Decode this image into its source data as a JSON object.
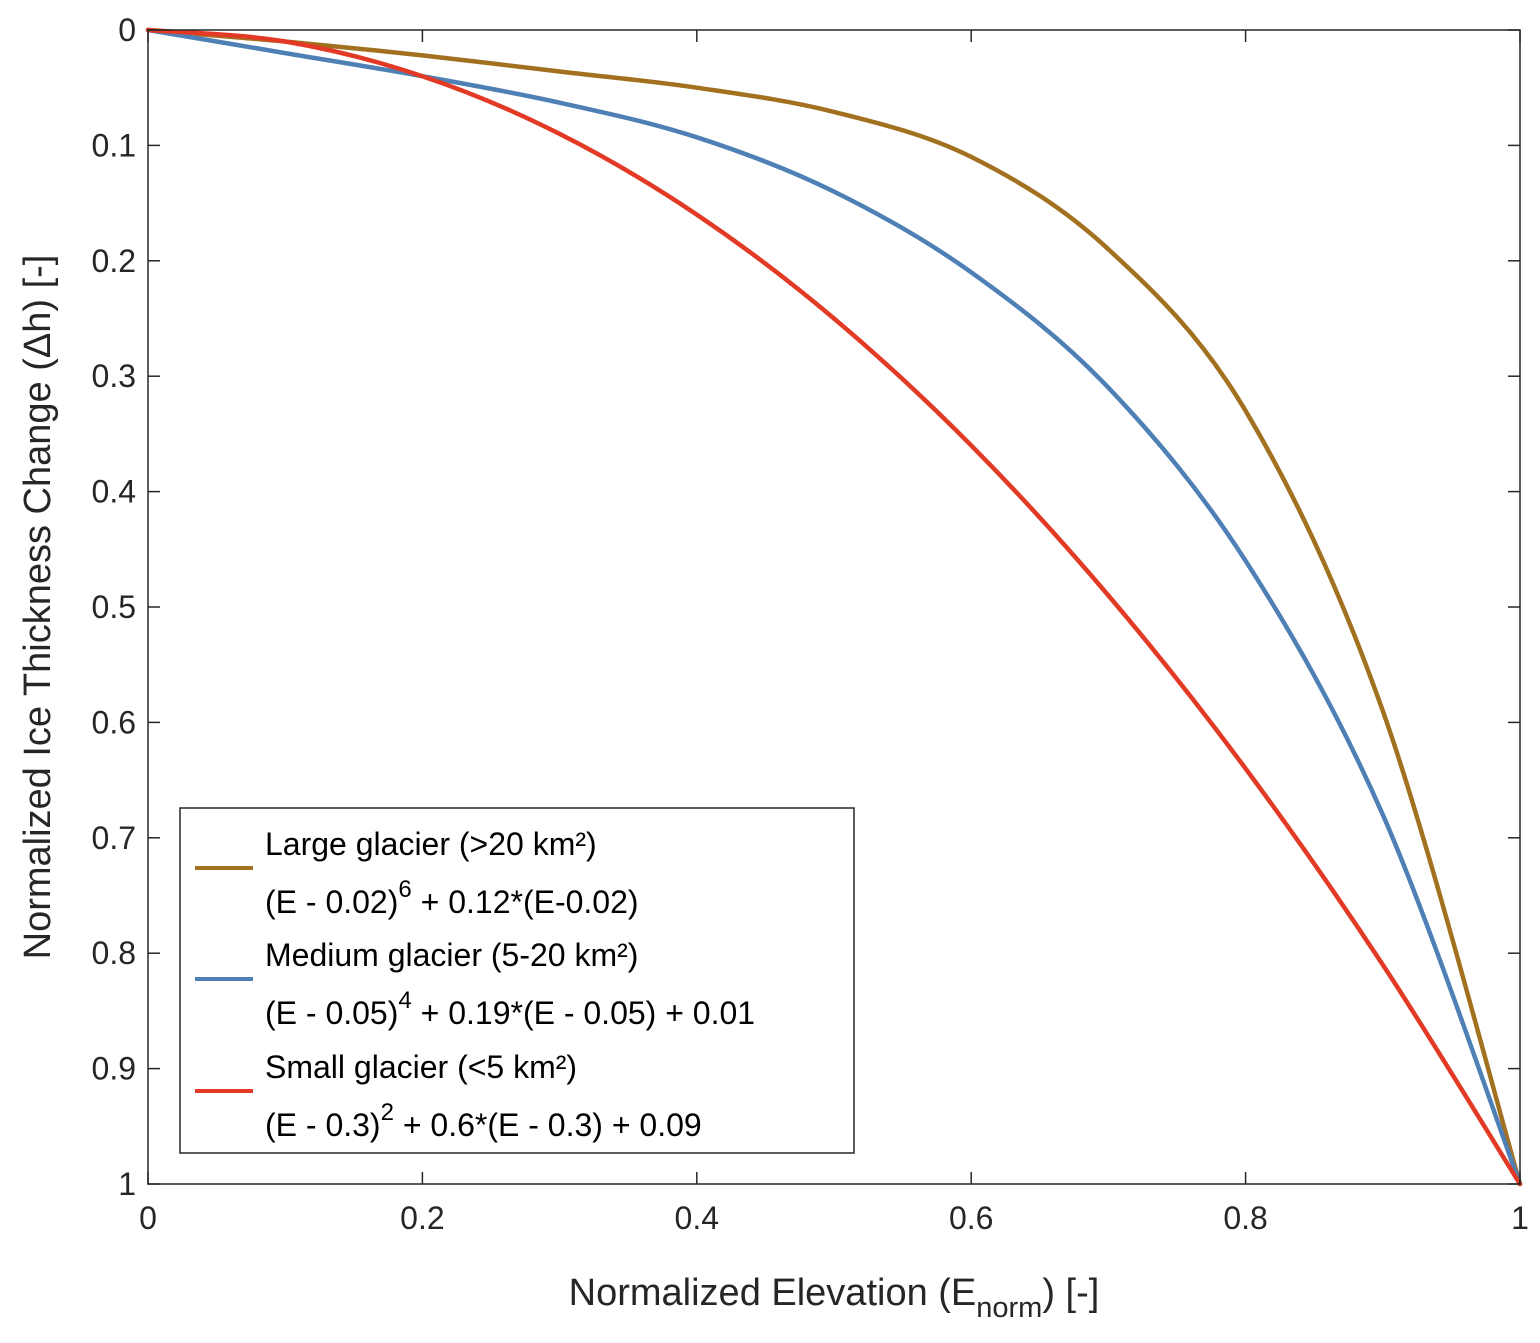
{
  "chart_data": {
    "type": "line",
    "title": "",
    "xlabel": {
      "main": "Normalized Elevation (E",
      "sub": "norm",
      "tail": ") [-]"
    },
    "ylabel": "Normalized Ice Thickness Change (Δh) [-]",
    "xlim": [
      0,
      1
    ],
    "ylim": [
      0,
      1
    ],
    "y_reversed": true,
    "grid": false,
    "legend_position": "bottom-left",
    "x_ticks": [
      0,
      0.2,
      0.4,
      0.6,
      0.8,
      1
    ],
    "x_tick_labels": [
      "0",
      "0.2",
      "0.4",
      "0.6",
      "0.8",
      "1"
    ],
    "y_ticks": [
      0,
      0.1,
      0.2,
      0.3,
      0.4,
      0.5,
      0.6,
      0.7,
      0.8,
      0.9,
      1
    ],
    "y_tick_labels": [
      "0",
      "0.1",
      "0.2",
      "0.3",
      "0.4",
      "0.5",
      "0.6",
      "0.7",
      "0.8",
      "0.9",
      "1"
    ],
    "x": [
      0,
      0.1,
      0.2,
      0.3,
      0.4,
      0.5,
      0.6,
      0.7,
      0.8,
      0.9,
      1
    ],
    "series": [
      {
        "name": "Large glacier (>20 km²)",
        "formula": {
          "base": "(E - 0.02)",
          "exp": "6",
          "rest": " + 0.12*(E-0.02)"
        },
        "color": "#A2711F",
        "values": [
          0,
          0.01,
          0.022,
          0.036,
          0.05,
          0.071,
          0.11,
          0.19,
          0.33,
          0.59,
          1
        ]
      },
      {
        "name": "Medium glacier (5-20 km²)",
        "formula": {
          "base": "(E - 0.05)",
          "exp": "4",
          "rest": " + 0.19*(E - 0.05) + 0.01"
        },
        "color": "#4E80B6",
        "values": [
          0,
          0.02,
          0.04,
          0.063,
          0.093,
          0.14,
          0.21,
          0.31,
          0.46,
          0.68,
          1
        ]
      },
      {
        "name": "Small glacier (<5 km²)",
        "formula": {
          "base": "(E - 0.3)",
          "exp": "2",
          "rest": " + 0.6*(E - 0.3) + 0.09"
        },
        "color": "#E23A25",
        "values": [
          0,
          0.01,
          0.04,
          0.09,
          0.16,
          0.25,
          0.36,
          0.49,
          0.64,
          0.81,
          1
        ]
      }
    ]
  }
}
